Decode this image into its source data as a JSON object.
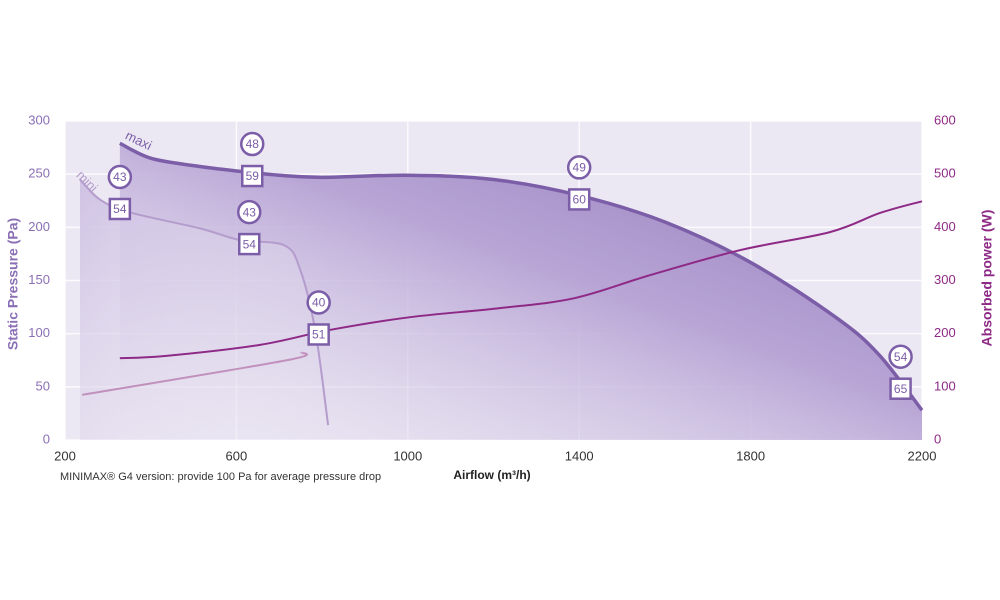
{
  "chart_data": {
    "type": "line",
    "y_label": "Static Pressure (Pa)",
    "y2_label": "Absorbed power (W)",
    "x_label": "Airflow (m³/h)",
    "footnote": "MINIMAX® G4 version: provide 100 Pa for average pressure drop",
    "xlim": [
      200,
      2200
    ],
    "xticks": [
      200,
      600,
      1000,
      1400,
      1800,
      2200
    ],
    "ylim": [
      0,
      300
    ],
    "yticks": [
      0,
      50,
      100,
      150,
      200,
      250,
      300
    ],
    "y2lim": [
      0,
      600
    ],
    "y2ticks": [
      0,
      100,
      200,
      300,
      400,
      500,
      600
    ],
    "grid": true,
    "series": [
      {
        "name": "maxi",
        "color": "#7b5ea7",
        "axis": "y",
        "x": [
          328,
          400,
          500,
          600,
          700,
          800,
          1000,
          1200,
          1400,
          1600,
          1800,
          2000,
          2100,
          2200
        ],
        "values": [
          279,
          265,
          258,
          253,
          249,
          247,
          249,
          245,
          230,
          205,
          167,
          115,
          80,
          28
        ]
      },
      {
        "name": "mini",
        "color": "#b49ccc",
        "axis": "y",
        "x": [
          235,
          282,
          352,
          515,
          608,
          712,
          749,
          784,
          814
        ],
        "values": [
          245,
          226,
          214,
          199,
          188,
          183,
          160,
          103,
          14
        ]
      },
      {
        "color": "#8e2a86",
        "axis": "y2",
        "x": [
          328,
          433,
          655,
          818,
          1005,
          1215,
          1390,
          1565,
          1775,
          1985,
          2102,
          2200
        ],
        "values": [
          154,
          158,
          179,
          207,
          231,
          248,
          267,
          310,
          357,
          391,
          427,
          449
        ]
      },
      {
        "color": "#c290bd",
        "axis": "y2",
        "x": [
          240,
          717,
          752
        ],
        "values": [
          85,
          150,
          165
        ]
      }
    ],
    "annotations": [
      {
        "x": 328,
        "y": 221,
        "circle": 43,
        "square": 54
      },
      {
        "x": 630,
        "y": 188,
        "circle": 43,
        "square": 54
      },
      {
        "x": 792,
        "y": 103,
        "circle": 40,
        "square": 51
      },
      {
        "x": 637,
        "y": 252,
        "circle": 48,
        "square": 59
      },
      {
        "x": 1400,
        "y": 230,
        "circle": 49,
        "square": 60
      },
      {
        "x": 2150,
        "y": 52,
        "circle": 54,
        "square": 65
      }
    ]
  }
}
